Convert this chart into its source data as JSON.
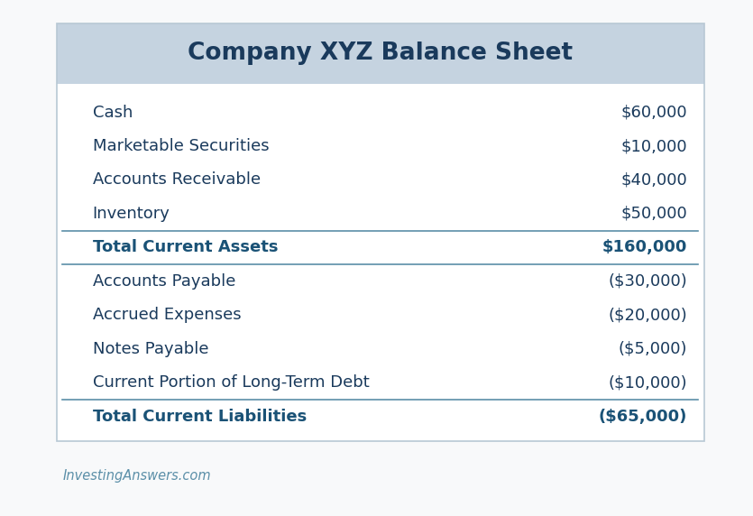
{
  "title": "Company XYZ Balance Sheet",
  "title_color": "#1a3a5c",
  "header_bg": "#c5d3e0",
  "table_bg": "#ffffff",
  "outer_bg": "#f8f9fa",
  "border_color": "#b8c8d4",
  "divider_color": "#5b8fa8",
  "text_color": "#1a3a5c",
  "bold_color": "#1a5276",
  "watermark_color": "#5b8fa8",
  "watermark": "InvestingAnswers.com",
  "rows": [
    {
      "label": "Cash",
      "value": "$60,000",
      "bold": false,
      "divider_below": false,
      "group": "assets"
    },
    {
      "label": "Marketable Securities",
      "value": "$10,000",
      "bold": false,
      "divider_below": false,
      "group": "assets"
    },
    {
      "label": "Accounts Receivable",
      "value": "$40,000",
      "bold": false,
      "divider_below": false,
      "group": "assets"
    },
    {
      "label": "Inventory",
      "value": "$50,000",
      "bold": false,
      "divider_below": true,
      "group": "assets"
    },
    {
      "label": "Total Current Assets",
      "value": "$160,000",
      "bold": true,
      "divider_below": true,
      "group": "total"
    },
    {
      "label": "Accounts Payable",
      "value": "($30,000)",
      "bold": false,
      "divider_below": false,
      "group": "liab"
    },
    {
      "label": "Accrued Expenses",
      "value": "($20,000)",
      "bold": false,
      "divider_below": false,
      "group": "liab"
    },
    {
      "label": "Notes Payable",
      "value": "($5,000)",
      "bold": false,
      "divider_below": false,
      "group": "liab"
    },
    {
      "label": "Current Portion of Long-Term Debt",
      "value": "($10,000)",
      "bold": false,
      "divider_below": true,
      "group": "liab"
    },
    {
      "label": "Total Current Liabilities",
      "value": "($65,000)",
      "bold": true,
      "divider_below": false,
      "group": "total"
    }
  ],
  "figsize": [
    8.35,
    5.72
  ],
  "dpi": 100
}
